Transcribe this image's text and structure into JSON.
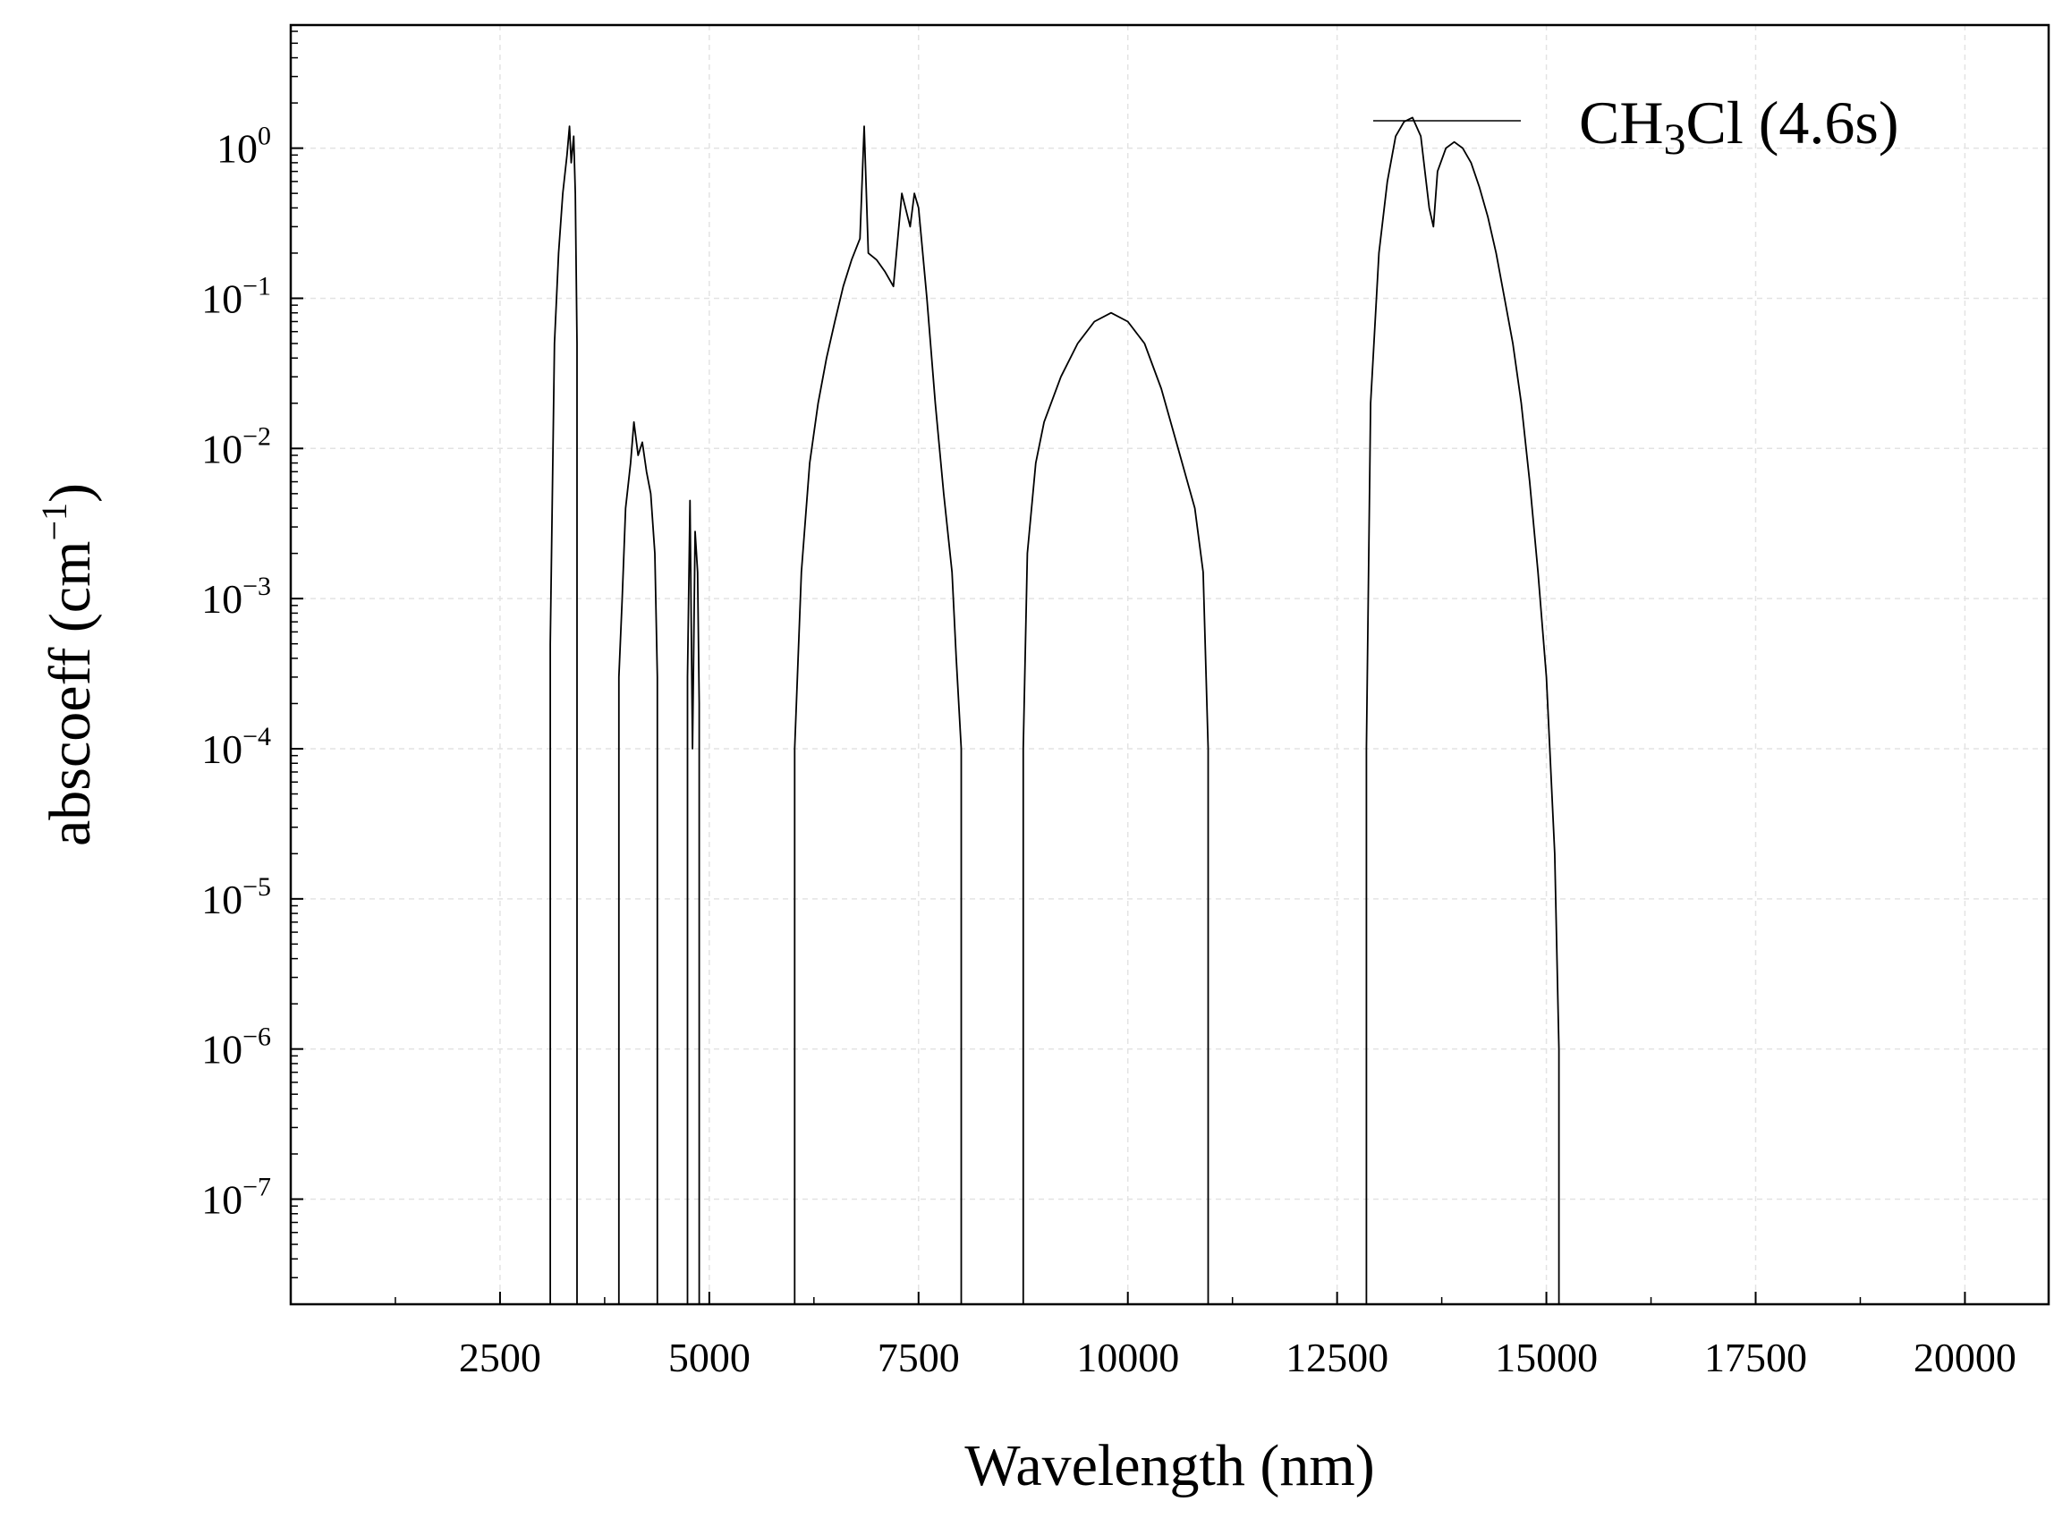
{
  "chart_data": {
    "type": "line",
    "xlabel": "Wavelength (nm)",
    "ylabel_main": "abscoeff (cm",
    "ylabel_sup": "−1",
    "ylabel_close": ")",
    "xlim": [
      0,
      21000
    ],
    "ylim_log10": [
      -7.7,
      0.82
    ],
    "y_scale": "log",
    "grid": true,
    "x_ticks": [
      2500,
      5000,
      7500,
      10000,
      12500,
      15000,
      17500,
      20000
    ],
    "y_ticks": [
      {
        "base": "10",
        "exp": "0",
        "log10": 0
      },
      {
        "base": "10",
        "exp": "−1",
        "log10": -1
      },
      {
        "base": "10",
        "exp": "−2",
        "log10": -2
      },
      {
        "base": "10",
        "exp": "−3",
        "log10": -3
      },
      {
        "base": "10",
        "exp": "−4",
        "log10": -4
      },
      {
        "base": "10",
        "exp": "−5",
        "log10": -5
      },
      {
        "base": "10",
        "exp": "−6",
        "log10": -6
      },
      {
        "base": "10",
        "exp": "−7",
        "log10": -7
      }
    ],
    "legend": {
      "placement": "top-right",
      "label_pre": "CH",
      "label_sub": "3",
      "label_post": "Cl (4.6s)"
    },
    "line_color": "#000000",
    "series": [
      {
        "name": "CH3Cl (4.6s)",
        "bands": [
          {
            "x": [
              3100,
              3150,
              3200,
              3250,
              3300,
              3330,
              3350,
              3380,
              3400,
              3420
            ],
            "y": [
              0.0005,
              0.05,
              0.2,
              0.5,
              0.9,
              1.4,
              0.8,
              1.2,
              0.5,
              0.05
            ]
          },
          {
            "x": [
              3920,
              3960,
              4000,
              4060,
              4100,
              4150,
              4200,
              4250,
              4300,
              4350,
              4380
            ],
            "y": [
              0.0003,
              0.001,
              0.004,
              0.008,
              0.015,
              0.009,
              0.011,
              0.007,
              0.005,
              0.002,
              0.0003
            ]
          },
          {
            "x": [
              4740,
              4770,
              4800,
              4830,
              4860,
              4880
            ],
            "y": [
              0.0003,
              0.0045,
              0.0001,
              0.0028,
              0.0015,
              0.0002
            ]
          },
          {
            "x": [
              6020,
              6100,
              6200,
              6300,
              6400,
              6500,
              6600,
              6700,
              6800,
              6850,
              6900,
              7000,
              7100,
              7200,
              7300,
              7400,
              7450,
              7500,
              7600,
              7700,
              7800,
              7900,
              7950,
              8010
            ],
            "y": [
              0.0001,
              0.0015,
              0.008,
              0.02,
              0.04,
              0.07,
              0.12,
              0.18,
              0.25,
              1.4,
              0.2,
              0.18,
              0.15,
              0.12,
              0.5,
              0.3,
              0.5,
              0.4,
              0.1,
              0.02,
              0.005,
              0.0015,
              0.0004,
              0.0001
            ]
          },
          {
            "x": [
              8750,
              8800,
              8900,
              9000,
              9200,
              9400,
              9600,
              9800,
              10000,
              10200,
              10400,
              10600,
              10800,
              10900,
              10960
            ],
            "y": [
              0.0001,
              0.002,
              0.008,
              0.015,
              0.03,
              0.05,
              0.07,
              0.08,
              0.07,
              0.05,
              0.025,
              0.01,
              0.004,
              0.0015,
              0.0001
            ]
          },
          {
            "x": [
              12850,
              12900,
              13000,
              13100,
              13200,
              13300,
              13400,
              13500,
              13600,
              13650,
              13700,
              13800,
              13900,
              14000,
              14100,
              14200,
              14300,
              14400,
              14500,
              14600,
              14700,
              14800,
              14900,
              15000,
              15100,
              15150
            ],
            "y": [
              0.0001,
              0.02,
              0.2,
              0.6,
              1.2,
              1.5,
              1.6,
              1.2,
              0.4,
              0.3,
              0.7,
              1.0,
              1.1,
              1.0,
              0.8,
              0.55,
              0.35,
              0.2,
              0.1,
              0.05,
              0.02,
              0.006,
              0.0015,
              0.0003,
              2e-05,
              1e-06
            ]
          }
        ]
      }
    ]
  }
}
